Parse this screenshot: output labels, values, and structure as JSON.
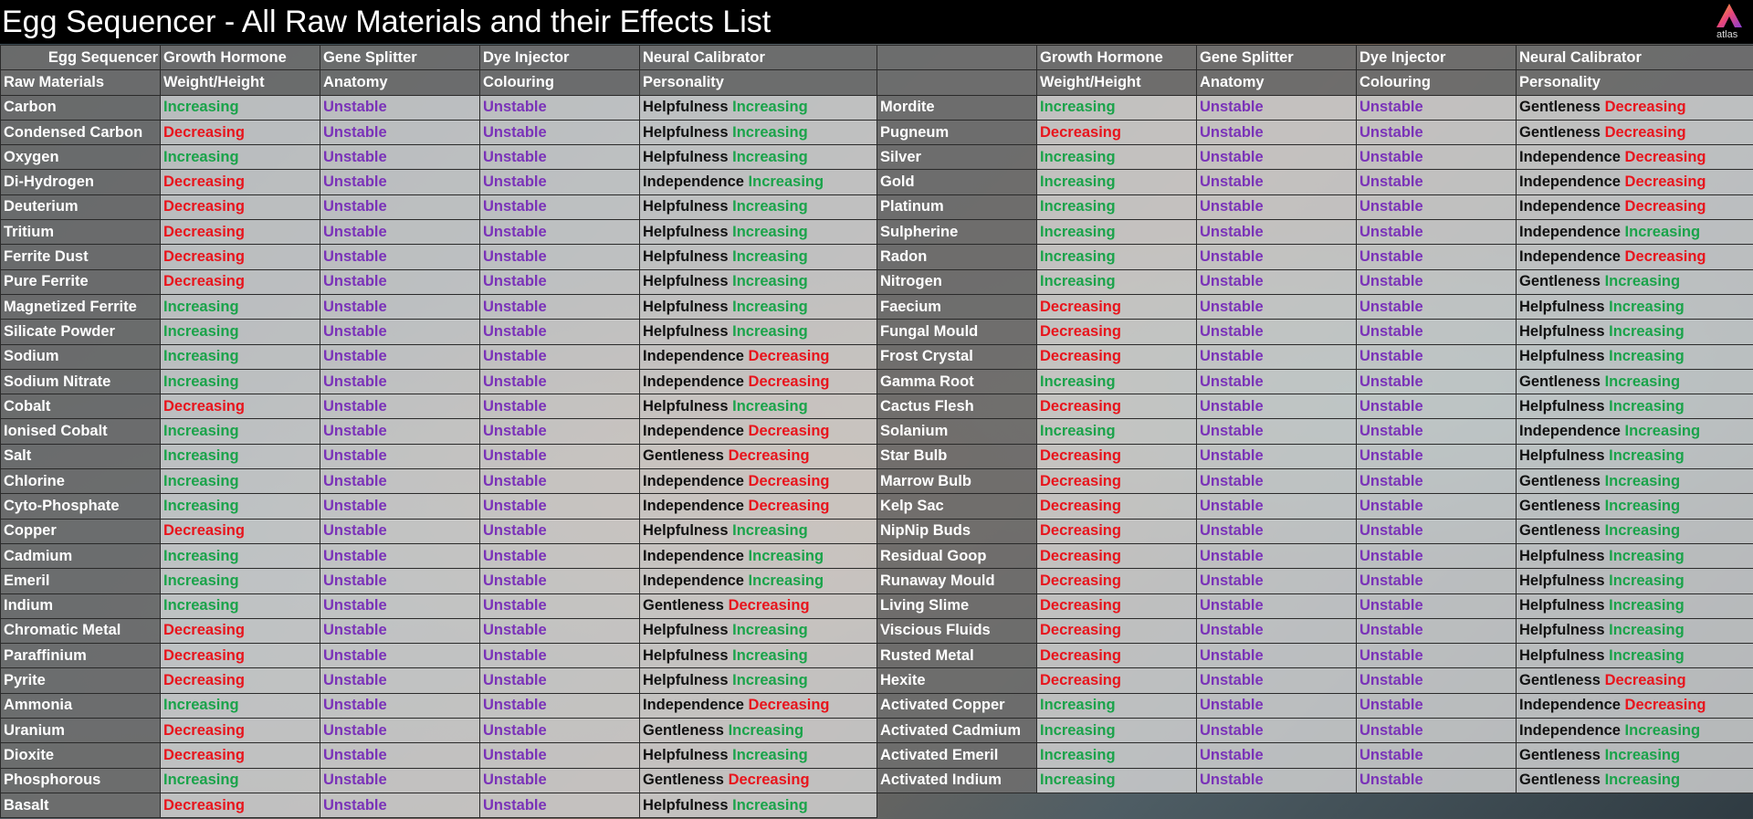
{
  "title": "Egg Sequencer - All Raw Materials and their Effects List",
  "logo_text": "atlas",
  "headers": {
    "corner_top": "Egg Sequencer",
    "corner_bottom": "Raw Materials",
    "col1_top": "Growth Hormone",
    "col1_bottom": "Weight/Height",
    "col2_top": "Gene Splitter",
    "col2_bottom": "Anatomy",
    "col3_top": "Dye Injector",
    "col3_bottom": "Colouring",
    "col4_top": "Neural Calibrator",
    "col4_bottom": "Personality"
  },
  "colors": {
    "increasing": "#1aa34a",
    "decreasing": "#e8141c",
    "unstable": "#7a32b8"
  },
  "left_rows": [
    {
      "name": "Carbon",
      "growth": "Increasing",
      "gene": "Unstable",
      "dye": "Unstable",
      "trait": "Helpfulness",
      "effect": "Increasing"
    },
    {
      "name": "Condensed Carbon",
      "growth": "Decreasing",
      "gene": "Unstable",
      "dye": "Unstable",
      "trait": "Helpfulness",
      "effect": "Increasing"
    },
    {
      "name": "Oxygen",
      "growth": "Increasing",
      "gene": "Unstable",
      "dye": "Unstable",
      "trait": "Helpfulness",
      "effect": "Increasing"
    },
    {
      "name": "Di-Hydrogen",
      "growth": "Decreasing",
      "gene": "Unstable",
      "dye": "Unstable",
      "trait": "Independence",
      "effect": "Increasing"
    },
    {
      "name": "Deuterium",
      "growth": "Decreasing",
      "gene": "Unstable",
      "dye": "Unstable",
      "trait": "Helpfulness",
      "effect": "Increasing"
    },
    {
      "name": "Tritium",
      "growth": "Decreasing",
      "gene": "Unstable",
      "dye": "Unstable",
      "trait": "Helpfulness",
      "effect": "Increasing"
    },
    {
      "name": "Ferrite Dust",
      "growth": "Decreasing",
      "gene": "Unstable",
      "dye": "Unstable",
      "trait": "Helpfulness",
      "effect": "Increasing"
    },
    {
      "name": "Pure Ferrite",
      "growth": "Decreasing",
      "gene": "Unstable",
      "dye": "Unstable",
      "trait": "Helpfulness",
      "effect": "Increasing"
    },
    {
      "name": "Magnetized Ferrite",
      "growth": "Increasing",
      "gene": "Unstable",
      "dye": "Unstable",
      "trait": "Helpfulness",
      "effect": "Increasing"
    },
    {
      "name": "Silicate Powder",
      "growth": "Increasing",
      "gene": "Unstable",
      "dye": "Unstable",
      "trait": "Helpfulness",
      "effect": "Increasing"
    },
    {
      "name": "Sodium",
      "growth": "Increasing",
      "gene": "Unstable",
      "dye": "Unstable",
      "trait": "Independence",
      "effect": "Decreasing"
    },
    {
      "name": "Sodium Nitrate",
      "growth": "Increasing",
      "gene": "Unstable",
      "dye": "Unstable",
      "trait": "Independence",
      "effect": "Decreasing"
    },
    {
      "name": "Cobalt",
      "growth": "Decreasing",
      "gene": "Unstable",
      "dye": "Unstable",
      "trait": "Helpfulness",
      "effect": "Increasing"
    },
    {
      "name": "Ionised Cobalt",
      "growth": "Increasing",
      "gene": "Unstable",
      "dye": "Unstable",
      "trait": "Independence",
      "effect": "Decreasing"
    },
    {
      "name": "Salt",
      "growth": "Increasing",
      "gene": "Unstable",
      "dye": "Unstable",
      "trait": "Gentleness",
      "effect": "Decreasing"
    },
    {
      "name": "Chlorine",
      "growth": "Increasing",
      "gene": "Unstable",
      "dye": "Unstable",
      "trait": "Independence",
      "effect": "Decreasing"
    },
    {
      "name": "Cyto-Phosphate",
      "growth": "Increasing",
      "gene": "Unstable",
      "dye": "Unstable",
      "trait": "Independence",
      "effect": "Decreasing"
    },
    {
      "name": "Copper",
      "growth": "Decreasing",
      "gene": "Unstable",
      "dye": "Unstable",
      "trait": "Helpfulness",
      "effect": "Increasing"
    },
    {
      "name": "Cadmium",
      "growth": "Increasing",
      "gene": "Unstable",
      "dye": "Unstable",
      "trait": "Independence",
      "effect": "Increasing"
    },
    {
      "name": "Emeril",
      "growth": "Increasing",
      "gene": "Unstable",
      "dye": "Unstable",
      "trait": "Independence",
      "effect": "Increasing"
    },
    {
      "name": "Indium",
      "growth": "Increasing",
      "gene": "Unstable",
      "dye": "Unstable",
      "trait": "Gentleness",
      "effect": "Decreasing"
    },
    {
      "name": "Chromatic Metal",
      "growth": "Decreasing",
      "gene": "Unstable",
      "dye": "Unstable",
      "trait": "Helpfulness",
      "effect": "Increasing"
    },
    {
      "name": "Paraffinium",
      "growth": "Decreasing",
      "gene": "Unstable",
      "dye": "Unstable",
      "trait": "Helpfulness",
      "effect": "Increasing"
    },
    {
      "name": "Pyrite",
      "growth": "Decreasing",
      "gene": "Unstable",
      "dye": "Unstable",
      "trait": "Helpfulness",
      "effect": "Increasing"
    },
    {
      "name": "Ammonia",
      "growth": "Increasing",
      "gene": "Unstable",
      "dye": "Unstable",
      "trait": "Independence",
      "effect": "Decreasing"
    },
    {
      "name": "Uranium",
      "growth": "Decreasing",
      "gene": "Unstable",
      "dye": "Unstable",
      "trait": "Gentleness",
      "effect": "Increasing"
    },
    {
      "name": "Dioxite",
      "growth": "Decreasing",
      "gene": "Unstable",
      "dye": "Unstable",
      "trait": "Helpfulness",
      "effect": "Increasing"
    },
    {
      "name": "Phosphorous",
      "growth": "Increasing",
      "gene": "Unstable",
      "dye": "Unstable",
      "trait": "Gentleness",
      "effect": "Decreasing"
    },
    {
      "name": "Basalt",
      "growth": "Decreasing",
      "gene": "Unstable",
      "dye": "Unstable",
      "trait": "Helpfulness",
      "effect": "Increasing"
    }
  ],
  "right_rows": [
    {
      "name": "Mordite",
      "growth": "Increasing",
      "gene": "Unstable",
      "dye": "Unstable",
      "trait": "Gentleness",
      "effect": "Decreasing"
    },
    {
      "name": "Pugneum",
      "growth": "Decreasing",
      "gene": "Unstable",
      "dye": "Unstable",
      "trait": "Gentleness",
      "effect": "Decreasing"
    },
    {
      "name": "Silver",
      "growth": "Increasing",
      "gene": "Unstable",
      "dye": "Unstable",
      "trait": "Independence",
      "effect": "Decreasing"
    },
    {
      "name": "Gold",
      "growth": "Increasing",
      "gene": "Unstable",
      "dye": "Unstable",
      "trait": "Independence",
      "effect": "Decreasing"
    },
    {
      "name": "Platinum",
      "growth": "Increasing",
      "gene": "Unstable",
      "dye": "Unstable",
      "trait": "Independence",
      "effect": "Decreasing"
    },
    {
      "name": "Sulpherine",
      "growth": "Increasing",
      "gene": "Unstable",
      "dye": "Unstable",
      "trait": "Independence",
      "effect": "Increasing"
    },
    {
      "name": "Radon",
      "growth": "Increasing",
      "gene": "Unstable",
      "dye": "Unstable",
      "trait": "Independence",
      "effect": "Decreasing"
    },
    {
      "name": "Nitrogen",
      "growth": "Increasing",
      "gene": "Unstable",
      "dye": "Unstable",
      "trait": "Gentleness",
      "effect": "Increasing"
    },
    {
      "name": "Faecium",
      "growth": "Decreasing",
      "gene": "Unstable",
      "dye": "Unstable",
      "trait": "Helpfulness",
      "effect": "Increasing"
    },
    {
      "name": "Fungal Mould",
      "growth": "Decreasing",
      "gene": "Unstable",
      "dye": "Unstable",
      "trait": "Helpfulness",
      "effect": "Increasing"
    },
    {
      "name": "Frost Crystal",
      "growth": "Decreasing",
      "gene": "Unstable",
      "dye": "Unstable",
      "trait": "Helpfulness",
      "effect": "Increasing"
    },
    {
      "name": "Gamma Root",
      "growth": "Increasing",
      "gene": "Unstable",
      "dye": "Unstable",
      "trait": "Gentleness",
      "effect": "Increasing"
    },
    {
      "name": "Cactus Flesh",
      "growth": "Decreasing",
      "gene": "Unstable",
      "dye": "Unstable",
      "trait": "Helpfulness",
      "effect": "Increasing"
    },
    {
      "name": "Solanium",
      "growth": "Increasing",
      "gene": "Unstable",
      "dye": "Unstable",
      "trait": "Independence",
      "effect": "Increasing"
    },
    {
      "name": "Star Bulb",
      "growth": "Decreasing",
      "gene": "Unstable",
      "dye": "Unstable",
      "trait": "Helpfulness",
      "effect": "Increasing"
    },
    {
      "name": "Marrow Bulb",
      "growth": "Decreasing",
      "gene": "Unstable",
      "dye": "Unstable",
      "trait": "Gentleness",
      "effect": "Increasing"
    },
    {
      "name": "Kelp Sac",
      "growth": "Decreasing",
      "gene": "Unstable",
      "dye": "Unstable",
      "trait": "Gentleness",
      "effect": "Increasing"
    },
    {
      "name": "NipNip Buds",
      "growth": "Decreasing",
      "gene": "Unstable",
      "dye": "Unstable",
      "trait": "Gentleness",
      "effect": "Increasing"
    },
    {
      "name": "Residual Goop",
      "growth": "Decreasing",
      "gene": "Unstable",
      "dye": "Unstable",
      "trait": "Helpfulness",
      "effect": "Increasing"
    },
    {
      "name": "Runaway Mould",
      "growth": "Decreasing",
      "gene": "Unstable",
      "dye": "Unstable",
      "trait": "Helpfulness",
      "effect": "Increasing"
    },
    {
      "name": "Living Slime",
      "growth": "Decreasing",
      "gene": "Unstable",
      "dye": "Unstable",
      "trait": "Helpfulness",
      "effect": "Increasing"
    },
    {
      "name": "Viscious Fluids",
      "growth": "Decreasing",
      "gene": "Unstable",
      "dye": "Unstable",
      "trait": "Helpfulness",
      "effect": "Increasing"
    },
    {
      "name": "Rusted Metal",
      "growth": "Decreasing",
      "gene": "Unstable",
      "dye": "Unstable",
      "trait": "Helpfulness",
      "effect": "Increasing"
    },
    {
      "name": "Hexite",
      "growth": "Decreasing",
      "gene": "Unstable",
      "dye": "Unstable",
      "trait": "Gentleness",
      "effect": "Decreasing"
    },
    {
      "name": "Activated Copper",
      "growth": "Increasing",
      "gene": "Unstable",
      "dye": "Unstable",
      "trait": "Independence",
      "effect": "Decreasing"
    },
    {
      "name": "Activated Cadmium",
      "growth": "Increasing",
      "gene": "Unstable",
      "dye": "Unstable",
      "trait": "Independence",
      "effect": "Increasing"
    },
    {
      "name": "Activated Emeril",
      "growth": "Increasing",
      "gene": "Unstable",
      "dye": "Unstable",
      "trait": "Gentleness",
      "effect": "Increasing"
    },
    {
      "name": "Activated Indium",
      "growth": "Increasing",
      "gene": "Unstable",
      "dye": "Unstable",
      "trait": "Gentleness",
      "effect": "Increasing"
    }
  ]
}
